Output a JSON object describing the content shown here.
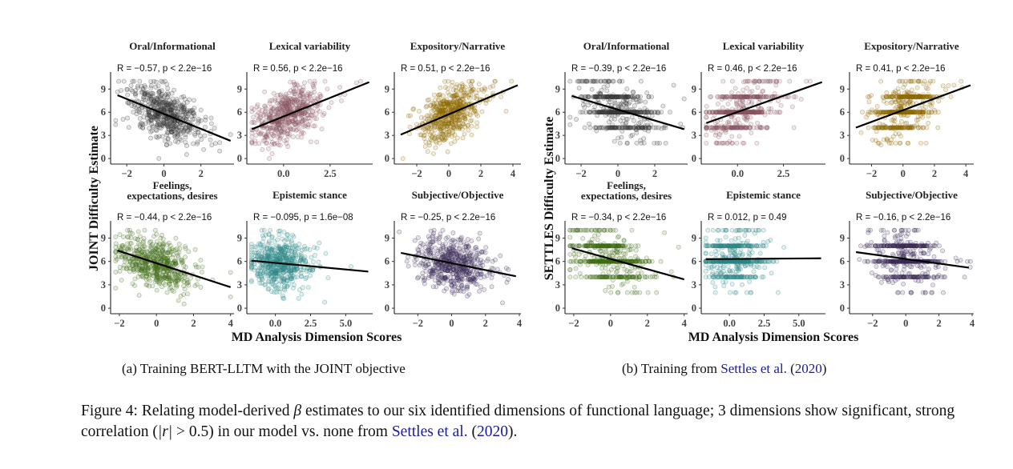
{
  "subfigures": [
    {
      "ylabel": "JOINT Difficulty Estimate",
      "xlabel": "MD Analysis Dimension Scores",
      "caption": {
        "prefix": "(a) Training ",
        "model": "BERT-LLTM",
        "mid": " with the ",
        "objective": "JOINT",
        "suffix": " objective"
      }
    },
    {
      "ylabel": "SETTLES Difficulty Estimate",
      "xlabel": "MD Analysis Dimension Scores",
      "caption": {
        "prefix": "(b) Training from ",
        "cite": "Settles et al.",
        "open": " (",
        "year": "2020",
        "close": ")"
      }
    }
  ],
  "figure_caption": {
    "label": "Figure 4:",
    "text1": " Relating model-derived ",
    "beta": "β",
    "text2": " estimates to our six identified dimensions of functional language; 3 dimensions show significant, strong correlation (",
    "absr": "|r|",
    "text3": " > 0.5) in our model vs. none from ",
    "cite": "Settles et al.",
    "open": " (",
    "year": "2020",
    "close": ")."
  },
  "chart_data": [
    {
      "type": "scatter",
      "subfigure": 0,
      "title": [
        "Oral/Informational"
      ],
      "stat": "R = −0.57, p < 2.2e−16",
      "color": "#3a3a3a",
      "xlim": [
        -2.7,
        3.7
      ],
      "xticks": [
        "−2",
        "0",
        "2"
      ],
      "xtick_values": [
        -2,
        0,
        2
      ],
      "ylim": [
        -0.3,
        11
      ],
      "yticks": [
        0,
        3,
        6,
        9
      ],
      "fit": [
        [
          -2.5,
          8.2
        ],
        [
          3.6,
          2.3
        ]
      ],
      "x_mean": 0,
      "x_sd": 0.95,
      "y_discrete": false
    },
    {
      "type": "scatter",
      "subfigure": 0,
      "title": [
        "Lexical variability"
      ],
      "stat": "R = 0.56, p < 2.2e−16",
      "color": "#8a5560",
      "xlim": [
        -1.8,
        4.7
      ],
      "xticks": [
        "0.0",
        "2.5"
      ],
      "xtick_values": [
        0,
        2.5
      ],
      "ylim": [
        -0.3,
        11
      ],
      "yticks": [
        0,
        3,
        6,
        9
      ],
      "fit": [
        [
          -1.7,
          3.8
        ],
        [
          4.6,
          9.9
        ]
      ],
      "x_mean": 0.1,
      "x_sd": 0.9,
      "y_discrete": false
    },
    {
      "type": "scatter",
      "subfigure": 0,
      "title": [
        "Expository/Narrative"
      ],
      "stat": "R = 0.51, p < 2.2e−16",
      "color": "#8e6a00",
      "xlim": [
        -3.2,
        4.4
      ],
      "xticks": [
        "−2",
        "0",
        "2",
        "4"
      ],
      "xtick_values": [
        -2,
        0,
        2,
        4
      ],
      "ylim": [
        -0.3,
        11
      ],
      "yticks": [
        0,
        3,
        6,
        9
      ],
      "fit": [
        [
          -3,
          3.1
        ],
        [
          4.3,
          9.5
        ]
      ],
      "x_mean": 0,
      "x_sd": 0.95,
      "y_discrete": false
    },
    {
      "type": "scatter",
      "subfigure": 0,
      "title": [
        "Feelings,",
        "expectations, desires"
      ],
      "stat": "R = −0.44, p < 2.2e−16",
      "color": "#3f6b14",
      "xlim": [
        -2.3,
        4.1
      ],
      "xticks": [
        "−2",
        "0",
        "2",
        "4"
      ],
      "xtick_values": [
        -2,
        0,
        2,
        4
      ],
      "ylim": [
        -0.3,
        11
      ],
      "yticks": [
        0,
        3,
        6,
        9
      ],
      "fit": [
        [
          -2.1,
          7.4
        ],
        [
          4,
          2.7
        ]
      ],
      "x_mean": -0.1,
      "x_sd": 0.95,
      "y_discrete": false
    },
    {
      "type": "scatter",
      "subfigure": 0,
      "title": [
        "Epistemic stance"
      ],
      "stat": "R = −0.095, p = 1.6e−08",
      "color": "#2e8787",
      "xlim": [
        -1.8,
        6.8
      ],
      "xticks": [
        "0.0",
        "2.5",
        "5.0"
      ],
      "xtick_values": [
        0,
        2.5,
        5
      ],
      "ylim": [
        -0.3,
        11
      ],
      "yticks": [
        0,
        3,
        6,
        9
      ],
      "fit": [
        [
          -1.7,
          6.1
        ],
        [
          6.6,
          4.7
        ]
      ],
      "x_mean": 0.2,
      "x_sd": 1.0,
      "y_discrete": false
    },
    {
      "type": "scatter",
      "subfigure": 0,
      "title": [
        "Subjective/Objective"
      ],
      "stat": "R = −0.25, p < 2.2e−16",
      "color": "#3b2b58",
      "xlim": [
        -3.2,
        4
      ],
      "xticks": [
        "−2",
        "0",
        "2",
        "4"
      ],
      "xtick_values": [
        -2,
        0,
        2,
        4
      ],
      "ylim": [
        -0.3,
        11
      ],
      "yticks": [
        0,
        3,
        6,
        9
      ],
      "fit": [
        [
          -3,
          7.1
        ],
        [
          3.8,
          4.1
        ]
      ],
      "x_mean": 0,
      "x_sd": 1.0,
      "y_discrete": false
    },
    {
      "type": "scatter",
      "subfigure": 1,
      "title": [
        "Oral/Informational"
      ],
      "stat": "R = −0.39, p < 2.2e−16",
      "color": "#3a3a3a",
      "xlim": [
        -2.7,
        3.7
      ],
      "xticks": [
        "−2",
        "0",
        "2"
      ],
      "xtick_values": [
        -2,
        0,
        2
      ],
      "ylim": [
        -0.3,
        11
      ],
      "yticks": [
        0,
        3,
        6,
        9
      ],
      "fit": [
        [
          -2.5,
          8.1
        ],
        [
          3.6,
          3.8
        ]
      ],
      "x_mean": 0,
      "x_sd": 0.95,
      "y_discrete": true
    },
    {
      "type": "scatter",
      "subfigure": 1,
      "title": [
        "Lexical variability"
      ],
      "stat": "R = 0.46, p < 2.2e−16",
      "color": "#8a5560",
      "xlim": [
        -1.8,
        4.7
      ],
      "xticks": [
        "0.0",
        "2.5"
      ],
      "xtick_values": [
        0,
        2.5
      ],
      "ylim": [
        -0.3,
        11
      ],
      "yticks": [
        0,
        3,
        6,
        9
      ],
      "fit": [
        [
          -1.7,
          4.6
        ],
        [
          4.6,
          9.9
        ]
      ],
      "x_mean": 0.1,
      "x_sd": 0.9,
      "y_discrete": true
    },
    {
      "type": "scatter",
      "subfigure": 1,
      "title": [
        "Expository/Narrative"
      ],
      "stat": "R = 0.41, p < 2.2e−16",
      "color": "#8e6a00",
      "xlim": [
        -3.2,
        4.4
      ],
      "xticks": [
        "−2",
        "0",
        "2",
        "4"
      ],
      "xtick_values": [
        -2,
        0,
        2,
        4
      ],
      "ylim": [
        -0.3,
        11
      ],
      "yticks": [
        0,
        3,
        6,
        9
      ],
      "fit": [
        [
          -3,
          4
        ],
        [
          4.3,
          9.5
        ]
      ],
      "x_mean": 0,
      "x_sd": 0.95,
      "y_discrete": true
    },
    {
      "type": "scatter",
      "subfigure": 1,
      "title": [
        "Feelings,",
        "expectations, desires"
      ],
      "stat": "R = −0.34, p < 2.2e−16",
      "color": "#3f6b14",
      "xlim": [
        -2.3,
        4.1
      ],
      "xticks": [
        "−2",
        "0",
        "2",
        "4"
      ],
      "xtick_values": [
        -2,
        0,
        2,
        4
      ],
      "ylim": [
        -0.3,
        11
      ],
      "yticks": [
        0,
        3,
        6,
        9
      ],
      "fit": [
        [
          -2.1,
          7.7
        ],
        [
          4,
          3.7
        ]
      ],
      "x_mean": -0.1,
      "x_sd": 0.95,
      "y_discrete": true
    },
    {
      "type": "scatter",
      "subfigure": 1,
      "title": [
        "Epistemic stance"
      ],
      "stat": "R = 0.012, p = 0.49",
      "color": "#2e8787",
      "xlim": [
        -1.8,
        6.8
      ],
      "xticks": [
        "0.0",
        "2.5",
        "5.0"
      ],
      "xtick_values": [
        0,
        2.5,
        5
      ],
      "ylim": [
        -0.3,
        11
      ],
      "yticks": [
        0,
        3,
        6,
        9
      ],
      "fit": [
        [
          -1.7,
          6.3
        ],
        [
          6.6,
          6.4
        ]
      ],
      "x_mean": 0.2,
      "x_sd": 1.0,
      "y_discrete": true
    },
    {
      "type": "scatter",
      "subfigure": 1,
      "title": [
        "Subjective/Objective"
      ],
      "stat": "R = −0.16, p < 2.2e−16",
      "color": "#3b2b58",
      "xlim": [
        -3.2,
        4
      ],
      "xticks": [
        "−2",
        "0",
        "2",
        "4"
      ],
      "xtick_values": [
        -2,
        0,
        2,
        4
      ],
      "ylim": [
        -0.3,
        11
      ],
      "yticks": [
        0,
        3,
        6,
        9
      ],
      "fit": [
        [
          -3,
          7.2
        ],
        [
          3.8,
          5.2
        ]
      ],
      "x_mean": 0,
      "x_sd": 1.0,
      "y_discrete": true
    }
  ]
}
